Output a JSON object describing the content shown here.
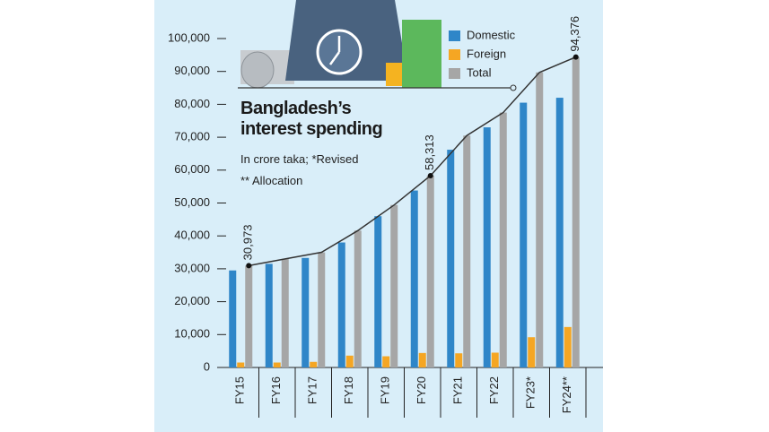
{
  "chart_data": {
    "type": "bar",
    "title": "Bangladesh’s interest spending",
    "subtitle": "In crore taka; *Revised",
    "note": "** Allocation",
    "categories": [
      "FY15",
      "FY16",
      "FY17",
      "FY18",
      "FY19",
      "FY20",
      "FY21",
      "FY22",
      "FY23*",
      "FY24**"
    ],
    "series": [
      {
        "name": "Domestic",
        "color": "#2f86c8",
        "values": [
          29500,
          31500,
          33300,
          38000,
          46000,
          53800,
          66200,
          73000,
          80500,
          82000
        ]
      },
      {
        "name": "Foreign",
        "color": "#f5a623",
        "values": [
          1500,
          1500,
          1700,
          3600,
          3400,
          4400,
          4300,
          4500,
          9200,
          12300
        ]
      },
      {
        "name": "Total",
        "color": "#a6a6a6",
        "values": [
          30973,
          33000,
          35000,
          41600,
          49400,
          58313,
          70500,
          77500,
          89700,
          94376
        ],
        "value_labels": [
          "30,973",
          null,
          null,
          null,
          null,
          "58,313",
          null,
          null,
          null,
          "94,376"
        ]
      }
    ],
    "line_color": "#333333",
    "ylim": [
      0,
      100000
    ],
    "yticks": [
      0,
      {
        "value": 10000,
        "label": "10,000"
      },
      {
        "value": 20000,
        "label": "20,000"
      },
      {
        "value": 30000,
        "label": "30,000"
      },
      {
        "value": 40000,
        "label": "40,000"
      },
      {
        "value": 50000,
        "label": "50,000"
      },
      {
        "value": 60000,
        "label": "60,000"
      },
      {
        "value": 70000,
        "label": "70,000"
      },
      {
        "value": 80000,
        "label": "80,000"
      },
      {
        "value": 90000,
        "label": "90,000"
      },
      {
        "value": 100000,
        "label": "100,000"
      }
    ],
    "grid": false
  }
}
